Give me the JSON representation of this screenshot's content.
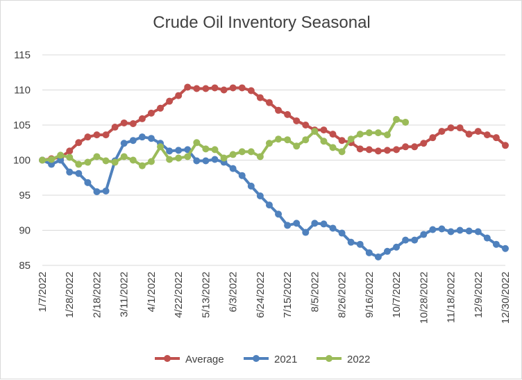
{
  "chart_data": {
    "type": "line",
    "title": "Crude Oil Inventory Seasonal",
    "xlabel": "",
    "ylabel": "",
    "ylim": [
      85,
      115
    ],
    "y_ticks": [
      "85",
      "90",
      "95",
      "100",
      "105",
      "110",
      "115"
    ],
    "x_tick_labels": [
      "1/7/2022",
      "1/28/2022",
      "2/18/2022",
      "3/11/2022",
      "4/1/2022",
      "4/22/2022",
      "5/13/2022",
      "6/3/2022",
      "6/24/2022",
      "7/15/2022",
      "8/5/2022",
      "8/26/2022",
      "9/16/2022",
      "10/7/2022",
      "10/28/2022",
      "11/18/2022",
      "12/9/2022",
      "12/30/2022"
    ],
    "grid": "horizontal",
    "legend_position": "bottom",
    "series": [
      {
        "name": "Average",
        "color": "#c0504d",
        "values": [
          100.0,
          100.2,
          100.4,
          101.3,
          102.5,
          103.3,
          103.6,
          103.6,
          104.7,
          105.3,
          105.2,
          105.9,
          106.7,
          107.4,
          108.4,
          109.2,
          110.4,
          110.2,
          110.2,
          110.3,
          110.0,
          110.3,
          110.3,
          109.9,
          108.9,
          108.2,
          107.1,
          106.5,
          105.6,
          105.0,
          104.3,
          104.3,
          103.7,
          102.8,
          102.5,
          101.6,
          101.5,
          101.3,
          101.4,
          101.5,
          101.9,
          101.9,
          102.4,
          103.2,
          104.1,
          104.6,
          104.6,
          103.7,
          104.1,
          103.6,
          103.2,
          102.1
        ]
      },
      {
        "name": "2021",
        "color": "#4f81bd",
        "values": [
          100.0,
          99.4,
          100.0,
          98.3,
          98.1,
          96.8,
          95.5,
          95.6,
          99.9,
          102.4,
          102.8,
          103.3,
          103.1,
          102.4,
          101.3,
          101.4,
          101.5,
          99.9,
          99.9,
          100.1,
          99.7,
          98.8,
          97.8,
          96.3,
          94.9,
          93.6,
          92.3,
          90.7,
          91.0,
          89.7,
          91.0,
          90.9,
          90.3,
          89.6,
          88.3,
          88.0,
          86.8,
          86.2,
          87.0,
          87.6,
          88.6,
          88.6,
          89.4,
          90.1,
          90.2,
          89.8,
          90.0,
          89.9,
          89.8,
          88.9,
          88.0,
          87.4
        ]
      },
      {
        "name": "2022",
        "color": "#9bbb59",
        "values": [
          100.0,
          100.1,
          100.7,
          100.4,
          99.4,
          99.7,
          100.5,
          99.9,
          99.7,
          100.5,
          100.0,
          99.2,
          99.8,
          101.9,
          100.1,
          100.3,
          100.5,
          102.5,
          101.6,
          101.5,
          100.3,
          100.8,
          101.2,
          101.2,
          100.5,
          102.4,
          103.0,
          102.9,
          102.0,
          102.9,
          104.1,
          102.7,
          101.8,
          101.2,
          103.0,
          103.7,
          103.9,
          103.9,
          103.6,
          105.8,
          105.4
        ]
      }
    ]
  }
}
